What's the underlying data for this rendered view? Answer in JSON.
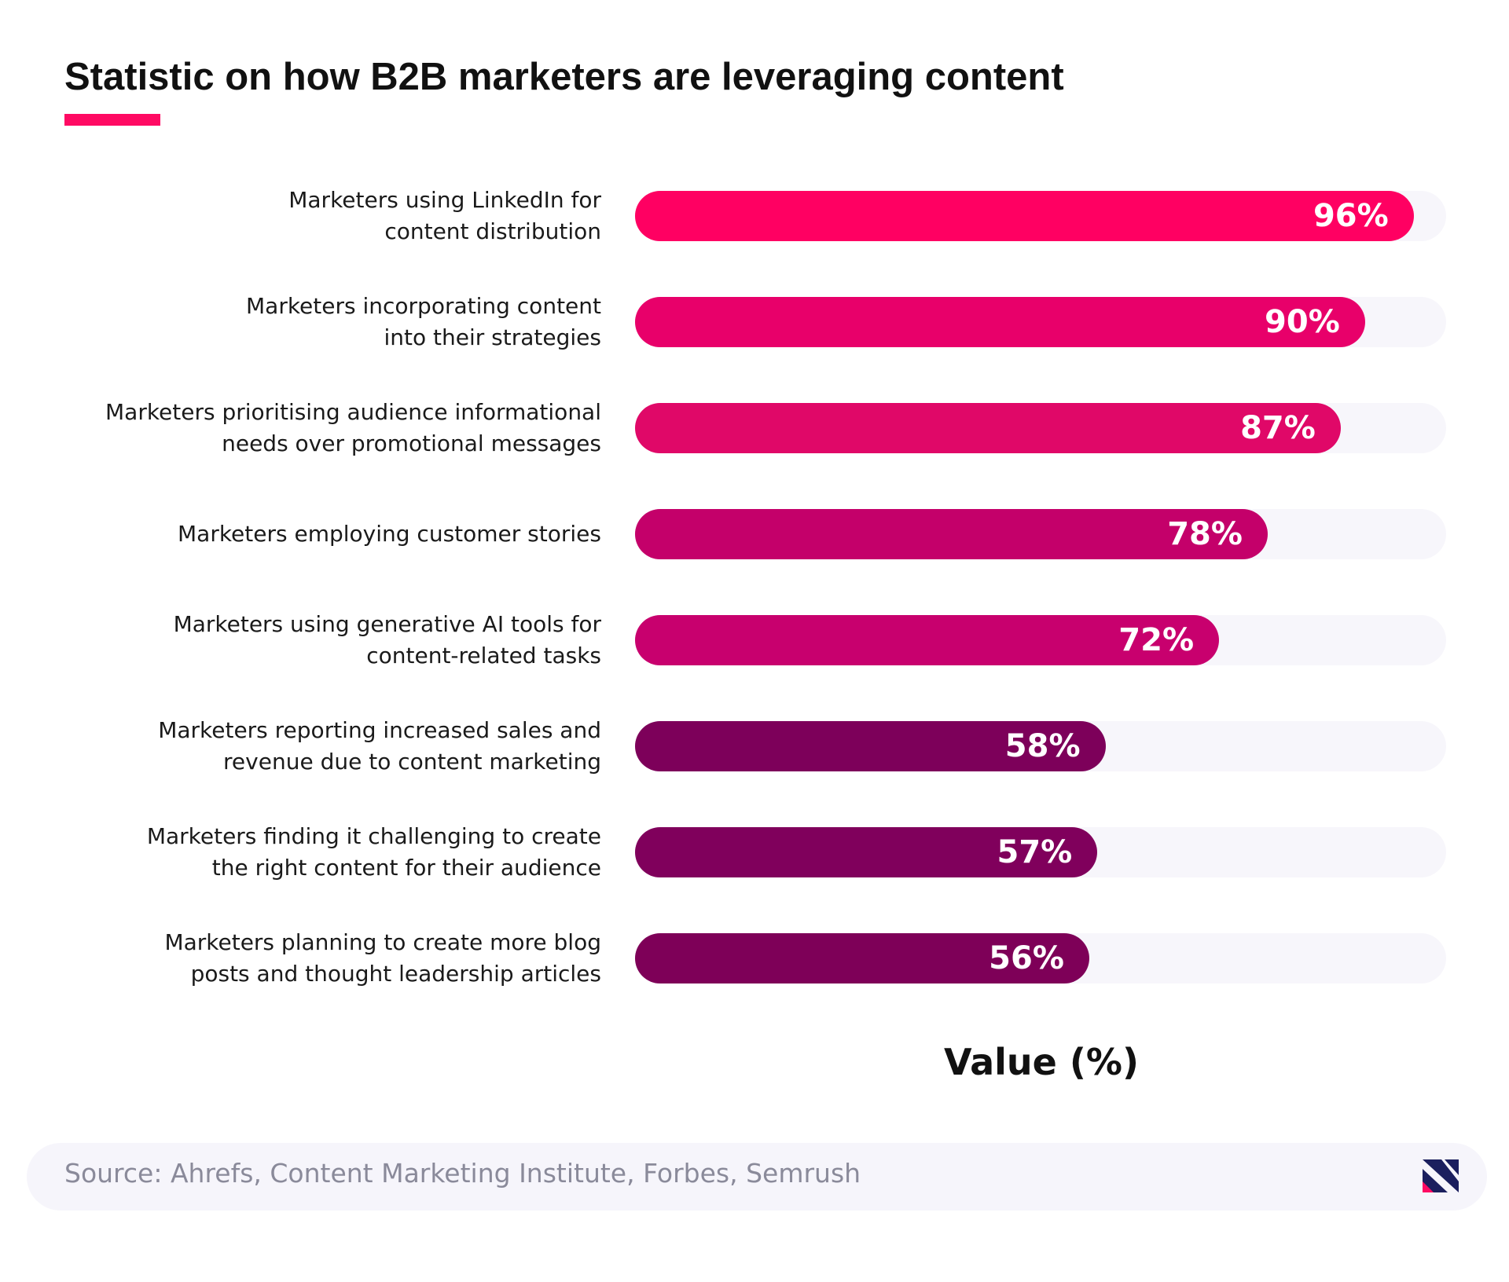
{
  "chart_data": {
    "type": "bar",
    "orientation": "horizontal",
    "title": "Statistic on how B2B marketers are leveraging content",
    "categories": [
      "Marketers using LinkedIn for\ncontent distribution",
      "Marketers incorporating content\ninto their strategies",
      "Marketers prioritising audience informational\nneeds over promotional messages",
      "Marketers employing customer stories",
      "Marketers using generative AI tools for\ncontent-related tasks",
      "Marketers reporting increased sales and\nrevenue due to content marketing",
      "Marketers finding it challenging to create\nthe right content for their audience",
      "Marketers planning to create more blog\nposts and thought leadership articles"
    ],
    "values": [
      96,
      90,
      87,
      78,
      72,
      58,
      57,
      56
    ],
    "value_labels": [
      "96%",
      "90%",
      "87%",
      "78%",
      "72%",
      "58%",
      "57%",
      "56%"
    ],
    "colors": [
      "#ff0062",
      "#e8006a",
      "#e00868",
      "#c4006a",
      "#c8006e",
      "#7d005a",
      "#80005c",
      "#7e0058"
    ],
    "xlim": [
      0,
      100
    ],
    "xlabel": "Value (%)",
    "source": "Source: Ahrefs, Content Marketing Institute, Forbes, Semrush"
  }
}
